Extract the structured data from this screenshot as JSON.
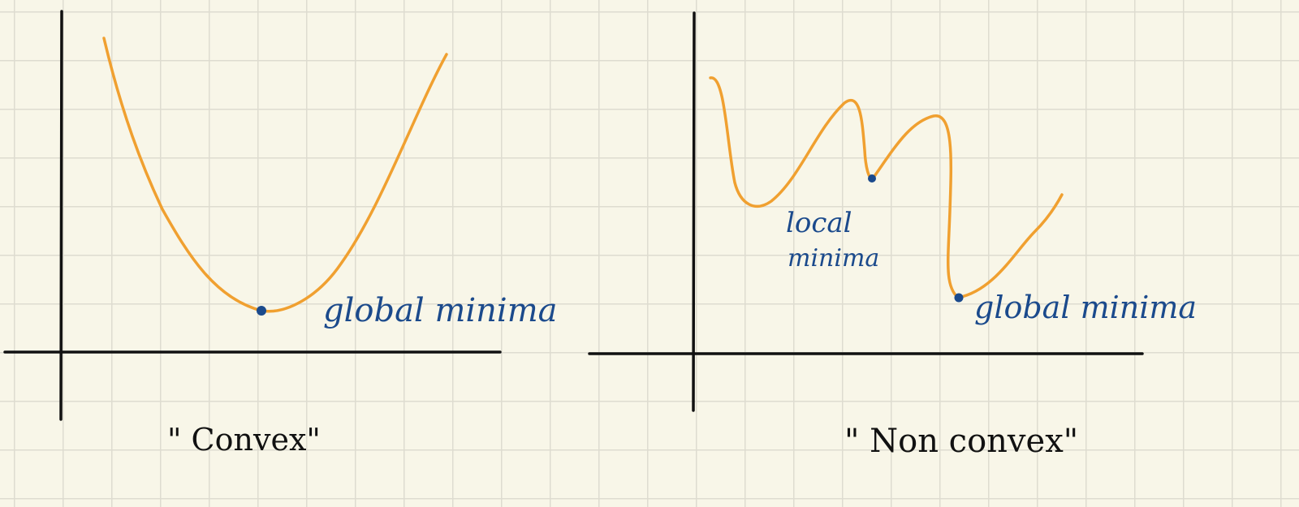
{
  "colors": {
    "paper": "#f8f6e8",
    "grid": "#dedcd0",
    "curve": "#f0a030",
    "annotation": "#1b4a8c",
    "axes": "#111111"
  },
  "left_diagram": {
    "caption": "\" Convex\"",
    "minimum_label": "global minima"
  },
  "right_diagram": {
    "caption": "\" Non convex\"",
    "local_label_line1": "local",
    "local_label_line2": "minima",
    "global_label": "global minima"
  }
}
